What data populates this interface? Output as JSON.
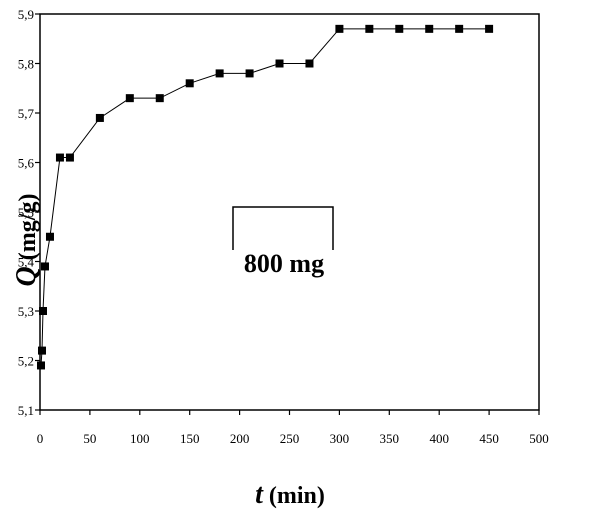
{
  "chart_data": {
    "type": "line",
    "title": "",
    "xlabel_var": "t",
    "xlabel_unit": " (min)",
    "ylabel_var": "Q",
    "ylabel_unit": " (mg/g)",
    "xlim": [
      0,
      500
    ],
    "ylim": [
      5.1,
      5.9
    ],
    "x_ticks": [
      0,
      50,
      100,
      150,
      200,
      250,
      300,
      350,
      400,
      450,
      500
    ],
    "y_ticks": [
      5.1,
      5.2,
      5.3,
      5.4,
      5.5,
      5.6,
      5.7,
      5.8,
      5.9
    ],
    "y_tick_labels": [
      "5,1",
      "5,2",
      "5,3",
      "5,4",
      "5,5",
      "5,6",
      "5,7",
      "5,8",
      "5,9"
    ],
    "grid": false,
    "legend": "none",
    "annotation": "800 mg",
    "series": [
      {
        "marker": "filled-square",
        "x": [
          1,
          2,
          3,
          5,
          10,
          20,
          30,
          60,
          90,
          120,
          150,
          180,
          210,
          240,
          270,
          300,
          330,
          360,
          390,
          420,
          450
        ],
        "y": [
          5.19,
          5.22,
          5.3,
          5.39,
          5.45,
          5.61,
          5.61,
          5.69,
          5.73,
          5.73,
          5.76,
          5.78,
          5.78,
          5.8,
          5.8,
          5.87,
          5.87,
          5.87,
          5.87,
          5.87,
          5.87
        ]
      }
    ]
  }
}
